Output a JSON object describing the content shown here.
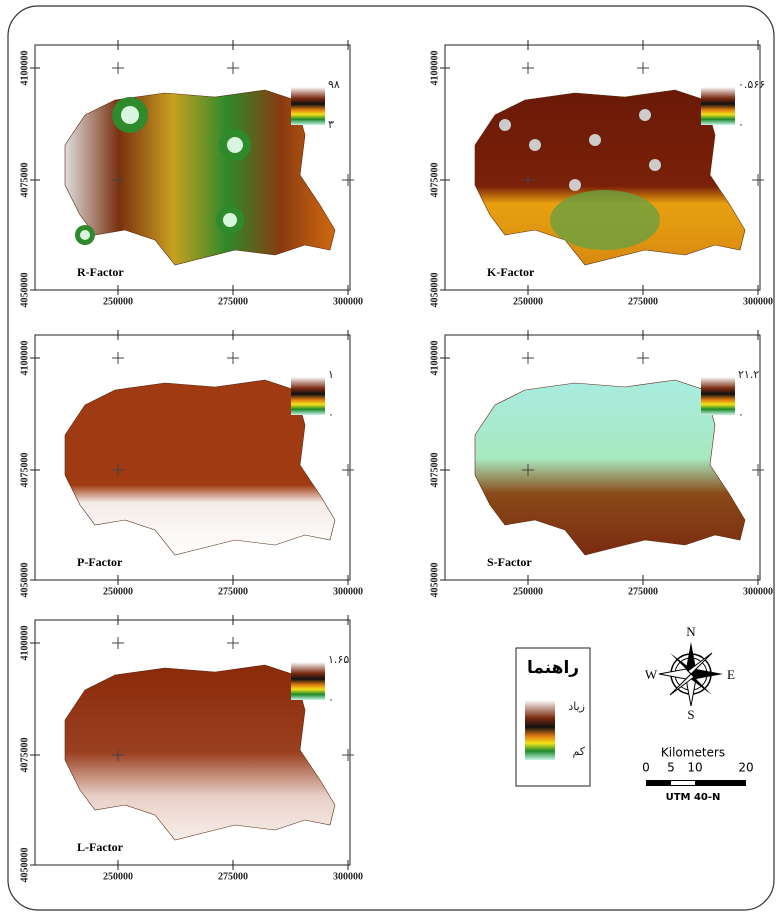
{
  "axes": {
    "x_ticks": [
      "250000",
      "275000",
      "300000"
    ],
    "y_ticks": [
      "4100000",
      "4075000",
      "4050000"
    ]
  },
  "panels": [
    {
      "label": "R-Factor",
      "legend_max": "۹۸",
      "legend_min": "۳"
    },
    {
      "label": "K-Factor",
      "legend_max": "۰.۵۶۶",
      "legend_min": "۰"
    },
    {
      "label": "P-Factor",
      "legend_max": "۱",
      "legend_min": "۰"
    },
    {
      "label": "S-Factor",
      "legend_max": "۲۱.۲",
      "legend_min": "۰"
    },
    {
      "label": "L-Factor",
      "legend_max": "۱.۶۵",
      "legend_min": "۰"
    }
  ],
  "legend": {
    "title": "راهنما",
    "high": "زیاد",
    "low": "کم"
  },
  "north_arrow": {
    "n": "N",
    "s": "S",
    "e": "E",
    "w": "W"
  },
  "scale_bar": {
    "title": "Kilometers",
    "labels": [
      "0",
      "5",
      "10",
      "20"
    ],
    "projection": "UTM 40-N"
  }
}
